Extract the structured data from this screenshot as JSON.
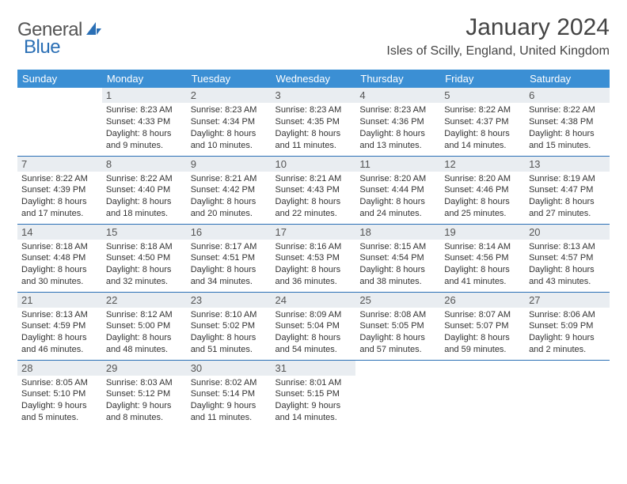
{
  "logo": {
    "text1": "General",
    "text2": "Blue"
  },
  "title": "January 2024",
  "location": "Isles of Scilly, England, United Kingdom",
  "colors": {
    "header_bg": "#3b8fd4",
    "daynum_bg": "#e9edf1",
    "rule": "#2a6fb5",
    "logo_blue": "#2a6fb5"
  },
  "weekdays": [
    "Sunday",
    "Monday",
    "Tuesday",
    "Wednesday",
    "Thursday",
    "Friday",
    "Saturday"
  ],
  "weeks": [
    [
      {
        "n": "",
        "sr": "",
        "ss": "",
        "dl1": "",
        "dl2": ""
      },
      {
        "n": "1",
        "sr": "Sunrise: 8:23 AM",
        "ss": "Sunset: 4:33 PM",
        "dl1": "Daylight: 8 hours",
        "dl2": "and 9 minutes."
      },
      {
        "n": "2",
        "sr": "Sunrise: 8:23 AM",
        "ss": "Sunset: 4:34 PM",
        "dl1": "Daylight: 8 hours",
        "dl2": "and 10 minutes."
      },
      {
        "n": "3",
        "sr": "Sunrise: 8:23 AM",
        "ss": "Sunset: 4:35 PM",
        "dl1": "Daylight: 8 hours",
        "dl2": "and 11 minutes."
      },
      {
        "n": "4",
        "sr": "Sunrise: 8:23 AM",
        "ss": "Sunset: 4:36 PM",
        "dl1": "Daylight: 8 hours",
        "dl2": "and 13 minutes."
      },
      {
        "n": "5",
        "sr": "Sunrise: 8:22 AM",
        "ss": "Sunset: 4:37 PM",
        "dl1": "Daylight: 8 hours",
        "dl2": "and 14 minutes."
      },
      {
        "n": "6",
        "sr": "Sunrise: 8:22 AM",
        "ss": "Sunset: 4:38 PM",
        "dl1": "Daylight: 8 hours",
        "dl2": "and 15 minutes."
      }
    ],
    [
      {
        "n": "7",
        "sr": "Sunrise: 8:22 AM",
        "ss": "Sunset: 4:39 PM",
        "dl1": "Daylight: 8 hours",
        "dl2": "and 17 minutes."
      },
      {
        "n": "8",
        "sr": "Sunrise: 8:22 AM",
        "ss": "Sunset: 4:40 PM",
        "dl1": "Daylight: 8 hours",
        "dl2": "and 18 minutes."
      },
      {
        "n": "9",
        "sr": "Sunrise: 8:21 AM",
        "ss": "Sunset: 4:42 PM",
        "dl1": "Daylight: 8 hours",
        "dl2": "and 20 minutes."
      },
      {
        "n": "10",
        "sr": "Sunrise: 8:21 AM",
        "ss": "Sunset: 4:43 PM",
        "dl1": "Daylight: 8 hours",
        "dl2": "and 22 minutes."
      },
      {
        "n": "11",
        "sr": "Sunrise: 8:20 AM",
        "ss": "Sunset: 4:44 PM",
        "dl1": "Daylight: 8 hours",
        "dl2": "and 24 minutes."
      },
      {
        "n": "12",
        "sr": "Sunrise: 8:20 AM",
        "ss": "Sunset: 4:46 PM",
        "dl1": "Daylight: 8 hours",
        "dl2": "and 25 minutes."
      },
      {
        "n": "13",
        "sr": "Sunrise: 8:19 AM",
        "ss": "Sunset: 4:47 PM",
        "dl1": "Daylight: 8 hours",
        "dl2": "and 27 minutes."
      }
    ],
    [
      {
        "n": "14",
        "sr": "Sunrise: 8:18 AM",
        "ss": "Sunset: 4:48 PM",
        "dl1": "Daylight: 8 hours",
        "dl2": "and 30 minutes."
      },
      {
        "n": "15",
        "sr": "Sunrise: 8:18 AM",
        "ss": "Sunset: 4:50 PM",
        "dl1": "Daylight: 8 hours",
        "dl2": "and 32 minutes."
      },
      {
        "n": "16",
        "sr": "Sunrise: 8:17 AM",
        "ss": "Sunset: 4:51 PM",
        "dl1": "Daylight: 8 hours",
        "dl2": "and 34 minutes."
      },
      {
        "n": "17",
        "sr": "Sunrise: 8:16 AM",
        "ss": "Sunset: 4:53 PM",
        "dl1": "Daylight: 8 hours",
        "dl2": "and 36 minutes."
      },
      {
        "n": "18",
        "sr": "Sunrise: 8:15 AM",
        "ss": "Sunset: 4:54 PM",
        "dl1": "Daylight: 8 hours",
        "dl2": "and 38 minutes."
      },
      {
        "n": "19",
        "sr": "Sunrise: 8:14 AM",
        "ss": "Sunset: 4:56 PM",
        "dl1": "Daylight: 8 hours",
        "dl2": "and 41 minutes."
      },
      {
        "n": "20",
        "sr": "Sunrise: 8:13 AM",
        "ss": "Sunset: 4:57 PM",
        "dl1": "Daylight: 8 hours",
        "dl2": "and 43 minutes."
      }
    ],
    [
      {
        "n": "21",
        "sr": "Sunrise: 8:13 AM",
        "ss": "Sunset: 4:59 PM",
        "dl1": "Daylight: 8 hours",
        "dl2": "and 46 minutes."
      },
      {
        "n": "22",
        "sr": "Sunrise: 8:12 AM",
        "ss": "Sunset: 5:00 PM",
        "dl1": "Daylight: 8 hours",
        "dl2": "and 48 minutes."
      },
      {
        "n": "23",
        "sr": "Sunrise: 8:10 AM",
        "ss": "Sunset: 5:02 PM",
        "dl1": "Daylight: 8 hours",
        "dl2": "and 51 minutes."
      },
      {
        "n": "24",
        "sr": "Sunrise: 8:09 AM",
        "ss": "Sunset: 5:04 PM",
        "dl1": "Daylight: 8 hours",
        "dl2": "and 54 minutes."
      },
      {
        "n": "25",
        "sr": "Sunrise: 8:08 AM",
        "ss": "Sunset: 5:05 PM",
        "dl1": "Daylight: 8 hours",
        "dl2": "and 57 minutes."
      },
      {
        "n": "26",
        "sr": "Sunrise: 8:07 AM",
        "ss": "Sunset: 5:07 PM",
        "dl1": "Daylight: 8 hours",
        "dl2": "and 59 minutes."
      },
      {
        "n": "27",
        "sr": "Sunrise: 8:06 AM",
        "ss": "Sunset: 5:09 PM",
        "dl1": "Daylight: 9 hours",
        "dl2": "and 2 minutes."
      }
    ],
    [
      {
        "n": "28",
        "sr": "Sunrise: 8:05 AM",
        "ss": "Sunset: 5:10 PM",
        "dl1": "Daylight: 9 hours",
        "dl2": "and 5 minutes."
      },
      {
        "n": "29",
        "sr": "Sunrise: 8:03 AM",
        "ss": "Sunset: 5:12 PM",
        "dl1": "Daylight: 9 hours",
        "dl2": "and 8 minutes."
      },
      {
        "n": "30",
        "sr": "Sunrise: 8:02 AM",
        "ss": "Sunset: 5:14 PM",
        "dl1": "Daylight: 9 hours",
        "dl2": "and 11 minutes."
      },
      {
        "n": "31",
        "sr": "Sunrise: 8:01 AM",
        "ss": "Sunset: 5:15 PM",
        "dl1": "Daylight: 9 hours",
        "dl2": "and 14 minutes."
      },
      {
        "n": "",
        "sr": "",
        "ss": "",
        "dl1": "",
        "dl2": ""
      },
      {
        "n": "",
        "sr": "",
        "ss": "",
        "dl1": "",
        "dl2": ""
      },
      {
        "n": "",
        "sr": "",
        "ss": "",
        "dl1": "",
        "dl2": ""
      }
    ]
  ]
}
